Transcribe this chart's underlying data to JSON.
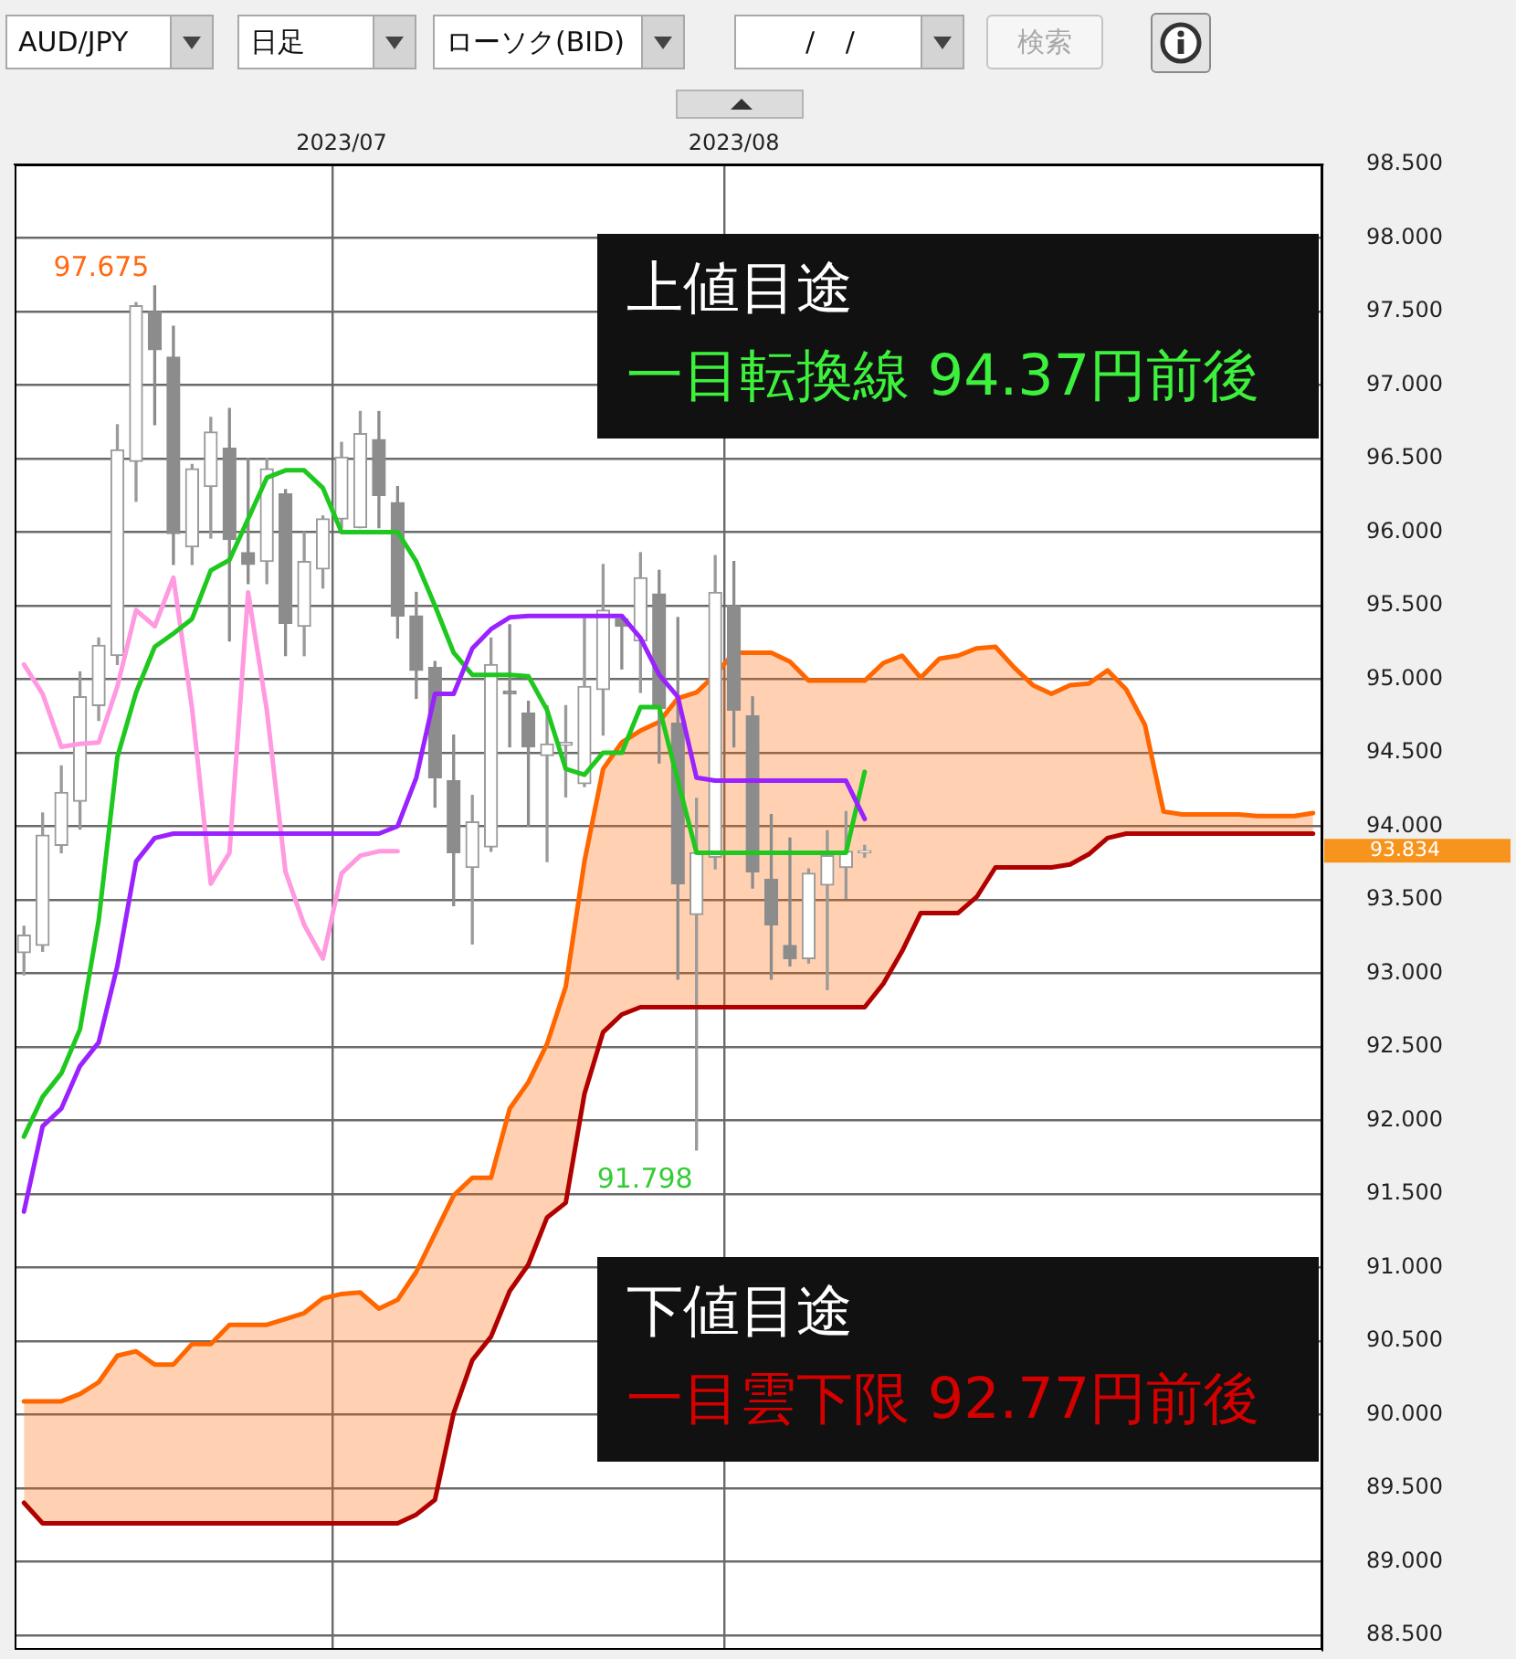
{
  "chart_data": {
    "type": "candlestick",
    "title": "AUD/JPY",
    "categories": [
      null,
      null,
      null,
      null,
      null,
      null,
      null,
      null,
      null,
      null,
      null,
      null,
      null,
      null,
      null,
      null,
      null,
      "2023/07",
      null,
      null,
      null,
      null,
      null,
      null,
      null,
      null,
      null,
      null,
      null,
      null,
      null,
      null,
      null,
      null,
      null,
      null,
      null,
      null,
      "2023/08",
      null,
      null,
      null,
      null,
      null,
      null,
      null,
      null,
      null,
      null,
      null,
      null,
      null,
      null,
      null,
      null,
      null,
      null,
      null,
      null,
      null,
      null,
      null,
      null,
      null,
      null,
      null,
      null,
      null,
      null,
      null
    ],
    "color": "#8c8c8c",
    "ohlc": [
      [
        93.14,
        93.32,
        92.99,
        93.26
      ],
      [
        93.19,
        94.09,
        93.15,
        93.94
      ],
      [
        93.87,
        94.41,
        93.82,
        94.23
      ],
      [
        94.17,
        95.05,
        93.98,
        94.88
      ],
      [
        94.82,
        95.28,
        94.72,
        95.23
      ],
      [
        95.16,
        96.73,
        95.1,
        96.56
      ],
      [
        96.48,
        97.56,
        96.21,
        97.54
      ],
      [
        97.5,
        97.675,
        96.73,
        97.24
      ],
      [
        97.19,
        97.4,
        95.78,
        95.99
      ],
      [
        95.9,
        96.46,
        95.78,
        96.43
      ],
      [
        96.31,
        96.78,
        95.96,
        96.68
      ],
      [
        96.57,
        96.84,
        95.26,
        95.95
      ],
      [
        95.86,
        96.5,
        95.65,
        95.78
      ],
      [
        95.8,
        96.5,
        95.65,
        96.43
      ],
      [
        96.26,
        96.29,
        95.16,
        95.38
      ],
      [
        95.36,
        96.0,
        95.16,
        95.8
      ],
      [
        95.75,
        96.11,
        95.62,
        96.09
      ],
      [
        96.09,
        96.61,
        96.03,
        96.51
      ],
      [
        96.03,
        96.82,
        96.03,
        96.67
      ],
      [
        96.63,
        96.82,
        96.03,
        96.25
      ],
      [
        96.2,
        96.31,
        95.28,
        95.43
      ],
      [
        95.43,
        95.59,
        94.87,
        95.06
      ],
      [
        95.08,
        95.12,
        94.13,
        94.33
      ],
      [
        94.31,
        94.62,
        93.46,
        93.82
      ],
      [
        93.72,
        94.21,
        93.2,
        94.03
      ],
      [
        93.86,
        95.28,
        93.83,
        95.1
      ],
      [
        94.92,
        95.37,
        94.54,
        94.9
      ],
      [
        94.77,
        94.85,
        94.0,
        94.54
      ],
      [
        94.48,
        94.82,
        93.76,
        94.56
      ],
      [
        94.55,
        94.82,
        94.2,
        94.57
      ],
      [
        94.29,
        95.41,
        94.27,
        94.95
      ],
      [
        94.93,
        95.78,
        94.62,
        95.47
      ],
      [
        95.41,
        95.44,
        95.07,
        95.36
      ],
      [
        95.26,
        95.86,
        94.91,
        95.69
      ],
      [
        95.58,
        95.74,
        94.43,
        94.8
      ],
      [
        94.7,
        95.42,
        92.96,
        93.61
      ],
      [
        93.4,
        94.19,
        91.798,
        93.82
      ],
      [
        93.79,
        95.84,
        93.71,
        95.59
      ],
      [
        95.5,
        95.8,
        94.54,
        94.79
      ],
      [
        94.75,
        94.88,
        93.58,
        93.69
      ],
      [
        93.64,
        94.08,
        92.96,
        93.33
      ],
      [
        93.19,
        93.92,
        93.05,
        93.1
      ],
      [
        93.1,
        93.71,
        93.07,
        93.68
      ],
      [
        93.6,
        93.97,
        92.89,
        93.8
      ],
      [
        93.72,
        94.1,
        93.51,
        93.83
      ],
      [
        93.82,
        93.87,
        93.79,
        93.834
      ],
      null,
      null,
      null,
      null,
      null,
      null,
      null,
      null,
      null,
      null,
      null,
      null,
      null,
      null,
      null,
      null,
      null,
      null,
      null,
      null,
      null,
      null,
      null,
      null
    ],
    "series": [
      {
        "type": "area",
        "color": "#ff6600",
        "values": [
          90.09,
          90.09,
          90.09,
          90.14,
          90.22,
          90.4,
          90.43,
          90.34,
          90.34,
          90.48,
          90.48,
          90.61,
          90.61,
          90.61,
          90.65,
          90.69,
          90.79,
          90.82,
          90.83,
          90.72,
          90.78,
          90.97,
          91.23,
          91.49,
          91.61,
          91.61,
          92.08,
          92.26,
          92.52,
          92.91,
          93.76,
          94.39,
          94.57,
          94.65,
          94.71,
          94.87,
          94.91,
          95.03,
          95.18,
          95.18,
          95.18,
          95.12,
          94.99,
          94.99,
          94.99,
          94.99,
          95.11,
          95.16,
          95.01,
          95.14,
          95.16,
          95.21,
          95.22,
          95.08,
          94.96,
          94.9,
          94.96,
          94.97,
          95.06,
          94.93,
          94.69,
          94.1,
          94.08,
          94.08,
          94.08,
          94.08,
          94.07,
          94.07,
          94.07,
          94.09
        ]
      },
      {
        "type": "line",
        "color": "#b00000",
        "values": [
          89.4,
          89.26,
          89.26,
          89.26,
          89.26,
          89.26,
          89.26,
          89.26,
          89.26,
          89.26,
          89.26,
          89.26,
          89.26,
          89.26,
          89.26,
          89.26,
          89.26,
          89.26,
          89.26,
          89.26,
          89.26,
          89.32,
          89.42,
          90.01,
          90.37,
          90.53,
          90.84,
          91.02,
          91.34,
          91.44,
          92.18,
          92.6,
          92.72,
          92.77,
          92.77,
          92.77,
          92.77,
          92.77,
          92.77,
          92.77,
          92.77,
          92.77,
          92.77,
          92.77,
          92.77,
          92.77,
          92.93,
          93.15,
          93.41,
          93.41,
          93.41,
          93.52,
          93.72,
          93.72,
          93.72,
          93.72,
          93.74,
          93.81,
          93.92,
          93.95,
          93.95,
          93.95,
          93.95,
          93.95,
          93.95,
          93.95,
          93.95,
          93.95,
          93.95,
          93.95
        ]
      },
      {
        "type": "line",
        "color": "#9922ff",
        "values": [
          91.38,
          91.96,
          92.08,
          92.37,
          92.53,
          93.05,
          93.76,
          93.92,
          93.95,
          93.95,
          93.95,
          93.95,
          93.95,
          93.95,
          93.95,
          93.95,
          93.95,
          93.95,
          93.95,
          93.95,
          94.0,
          94.33,
          94.9,
          94.9,
          95.21,
          95.34,
          95.42,
          95.43,
          95.43,
          95.43,
          95.43,
          95.43,
          95.43,
          95.28,
          95.03,
          94.88,
          94.33,
          94.31,
          94.31,
          94.31,
          94.31,
          94.31,
          94.31,
          94.31,
          94.31,
          94.05,
          null,
          null,
          null,
          null,
          null,
          null,
          null,
          null,
          null,
          null,
          null,
          null,
          null,
          null,
          null,
          null,
          null,
          null,
          null,
          null,
          null,
          null,
          null,
          null
        ]
      },
      {
        "type": "line",
        "color": "#1ec81e",
        "values": [
          91.89,
          92.16,
          92.32,
          92.62,
          93.36,
          94.47,
          94.91,
          95.22,
          95.31,
          95.41,
          95.74,
          95.81,
          96.09,
          96.37,
          96.42,
          96.42,
          96.3,
          96.0,
          96.0,
          96.0,
          96.0,
          95.8,
          95.5,
          95.18,
          95.03,
          95.03,
          95.03,
          95.02,
          94.79,
          94.39,
          94.35,
          94.5,
          94.5,
          94.81,
          94.81,
          94.31,
          93.82,
          93.82,
          93.82,
          93.82,
          93.82,
          93.82,
          93.82,
          93.82,
          93.82,
          94.37,
          null,
          null,
          null,
          null,
          null,
          null,
          null,
          null,
          null,
          null,
          null,
          null,
          null,
          null,
          null,
          null,
          null,
          null,
          null,
          null,
          null,
          null,
          null,
          null
        ]
      },
      {
        "type": "line",
        "color": "#ff99e0",
        "values": [
          95.1,
          94.9,
          94.54,
          94.56,
          94.57,
          94.95,
          95.47,
          95.36,
          95.69,
          94.8,
          93.61,
          93.82,
          95.59,
          94.79,
          93.69,
          93.33,
          93.1,
          93.68,
          93.8,
          93.83,
          93.83,
          null,
          null,
          null,
          null,
          null,
          null,
          null,
          null,
          null,
          null,
          null,
          null,
          null,
          null,
          null,
          null,
          null,
          null,
          null,
          null,
          null,
          null,
          null,
          null,
          null,
          null,
          null,
          null,
          null,
          null,
          null,
          null,
          null,
          null,
          null,
          null,
          null,
          null,
          null,
          null,
          null,
          null,
          null,
          null,
          null,
          null,
          null,
          null,
          null
        ]
      }
    ],
    "ylim": [
      88.4,
      98.5
    ],
    "yticks": [
      {
        "value": 88.5,
        "label": "88.500"
      },
      {
        "value": 89,
        "label": "89.000"
      },
      {
        "value": 89.5,
        "label": "89.500"
      },
      {
        "value": 90,
        "label": "90.000"
      },
      {
        "value": 90.5,
        "label": "90.500"
      },
      {
        "value": 91,
        "label": "91.000"
      },
      {
        "value": 91.5,
        "label": "91.500"
      },
      {
        "value": 92,
        "label": "92.000"
      },
      {
        "value": 92.5,
        "label": "92.500"
      },
      {
        "value": 93,
        "label": "93.000"
      },
      {
        "value": 93.5,
        "label": "93.500"
      },
      {
        "value": 94,
        "label": "94.000"
      },
      {
        "value": 94.5,
        "label": "94.500"
      },
      {
        "value": 95,
        "label": "95.000"
      },
      {
        "value": 95.5,
        "label": "95.500"
      },
      {
        "value": 96,
        "label": "96.000"
      },
      {
        "value": 96.5,
        "label": "96.500"
      },
      {
        "value": 97,
        "label": "97.000"
      },
      {
        "value": 97.5,
        "label": "97.500"
      },
      {
        "value": 98,
        "label": "98.000"
      },
      {
        "value": 98.5,
        "label": "98.500"
      }
    ],
    "grid": true,
    "marker": "none",
    "line_style": "solid",
    "annotations": [
      "日足",
      "ローソク(BID)",
      "/ /",
      "検索",
      "97.675",
      "上値目途",
      "一目転換線 94.37円前後",
      "93.834",
      "91.798",
      "下値目途",
      "一目雲下限 92.77円前後"
    ]
  }
}
